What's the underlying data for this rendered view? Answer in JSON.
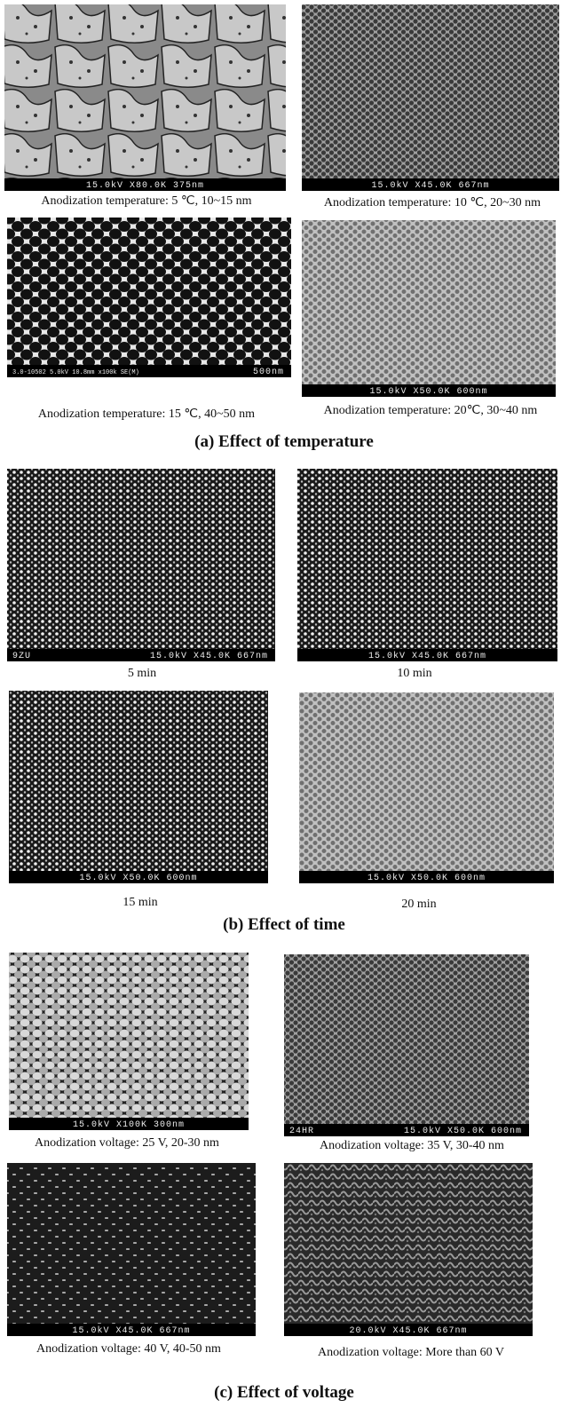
{
  "sections": [
    {
      "heading": "(a) Effect of temperature",
      "panels": [
        {
          "caption": "Anodization temperature: 5 ℃, 10~15 nm",
          "scale_bar": [
            "15.0kV X80.0K 375nm"
          ]
        },
        {
          "caption": "Anodization temperature: 10 ℃, 20~30 nm",
          "scale_bar": [
            "15.0kV X45.0K 667nm"
          ]
        },
        {
          "caption": "Anodization temperature: 15 ℃, 40~50 nm",
          "scale_bar": [
            "3.0-10502 5.0kV 10.8mm x100k SE(M)",
            "500nm"
          ]
        },
        {
          "caption": "Anodization temperature: 20℃, 30~40 nm",
          "scale_bar": [
            "15.0kV X50.0K 600nm"
          ]
        }
      ]
    },
    {
      "heading": "(b) Effect of time",
      "panels": [
        {
          "caption": "5 min",
          "scale_bar": [
            "9ZU",
            "15.0kV X45.0K 667nm"
          ]
        },
        {
          "caption": "10 min",
          "scale_bar": [
            "15.0kV X45.0K 667nm"
          ]
        },
        {
          "caption": "15 min",
          "scale_bar": [
            "15.0kV X50.0K 600nm"
          ]
        },
        {
          "caption": "20 min",
          "scale_bar": [
            "15.0kV X50.0K 600nm"
          ]
        }
      ]
    },
    {
      "heading": "(c) Effect of voltage",
      "panels": [
        {
          "caption": "Anodization voltage: 25 V, 20-30 nm",
          "scale_bar": [
            "15.0kV X100K 300nm"
          ]
        },
        {
          "caption": "Anodization voltage: 35 V, 30-40 nm",
          "scale_bar": [
            "24HR",
            "15.0kV X50.0K 600nm"
          ]
        },
        {
          "caption": "Anodization voltage: 40 V, 40-50 nm",
          "scale_bar": [
            "15.0kV X45.0K 667nm"
          ]
        },
        {
          "caption": "Anodization voltage: More than 60 V",
          "scale_bar": [
            "20.0kV X45.0K 667nm"
          ]
        }
      ]
    }
  ]
}
